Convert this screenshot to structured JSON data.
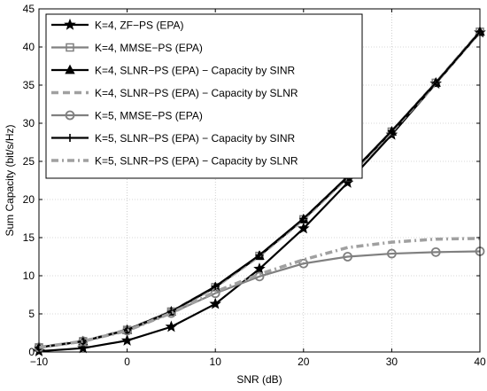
{
  "chart_data": {
    "type": "line",
    "xlabel": "SNR (dB)",
    "ylabel": "Sum Capacity (bit/s/Hz)",
    "xlim": [
      -10,
      40
    ],
    "ylim": [
      0,
      45
    ],
    "xticks": [
      -10,
      0,
      10,
      20,
      30,
      40
    ],
    "yticks": [
      0,
      5,
      10,
      15,
      20,
      25,
      30,
      35,
      40,
      45
    ],
    "x_tick_labels": [
      "−10",
      "0",
      "10",
      "20",
      "30",
      "40"
    ],
    "y_tick_labels": [
      "0",
      "5",
      "10",
      "15",
      "20",
      "25",
      "30",
      "35",
      "40",
      "45"
    ],
    "grid": true,
    "legend_position": "top-left",
    "x": [
      -10,
      -5,
      0,
      5,
      10,
      15,
      20,
      25,
      30,
      35,
      40
    ],
    "series": [
      {
        "name": "K=4, ZF−PS (EPA)",
        "color": "#000000",
        "dash": "solid",
        "marker": "star",
        "values": [
          0.1,
          0.5,
          1.5,
          3.3,
          6.3,
          10.9,
          16.2,
          22.2,
          28.5,
          35.2,
          41.9
        ]
      },
      {
        "name": "K=4, MMSE−PS (EPA)",
        "color": "#808080",
        "dash": "solid",
        "marker": "square",
        "values": [
          0.6,
          1.4,
          2.9,
          5.3,
          8.5,
          12.6,
          17.4,
          22.9,
          28.9,
          35.3,
          42.0
        ]
      },
      {
        "name": "K=4, SLNR−PS (EPA) − Capacity by SINR",
        "color": "#000000",
        "dash": "solid",
        "marker": "triangle",
        "values": [
          0.6,
          1.4,
          2.9,
          5.3,
          8.5,
          12.6,
          17.4,
          22.9,
          28.9,
          35.3,
          42.0
        ]
      },
      {
        "name": "K=4, SLNR−PS (EPA) − Capacity by SLNR",
        "color": "#a0a0a0",
        "dash": "dashed",
        "marker": "none",
        "values": [
          0.6,
          1.4,
          2.9,
          5.3,
          8.5,
          12.6,
          17.4,
          22.9,
          28.9,
          35.3,
          42.0
        ]
      },
      {
        "name": "K=5, MMSE−PS (EPA)",
        "color": "#808080",
        "dash": "solid",
        "marker": "circle",
        "values": [
          0.6,
          1.4,
          2.8,
          5.1,
          7.7,
          9.9,
          11.6,
          12.5,
          12.9,
          13.1,
          13.2
        ]
      },
      {
        "name": "K=5, SLNR−PS (EPA) − Capacity by SINR",
        "color": "#000000",
        "dash": "solid",
        "marker": "plus",
        "values": [
          0.6,
          1.4,
          2.9,
          5.3,
          8.6,
          12.7,
          17.5,
          23.0,
          29.0,
          35.3,
          42.0
        ]
      },
      {
        "name": "K=5, SLNR−PS (EPA) − Capacity by SLNR",
        "color": "#a0a0a0",
        "dash": "dashdot",
        "marker": "none",
        "values": [
          0.6,
          1.4,
          2.8,
          5.1,
          7.9,
          10.2,
          12.1,
          13.7,
          14.4,
          14.8,
          14.9
        ]
      }
    ]
  }
}
